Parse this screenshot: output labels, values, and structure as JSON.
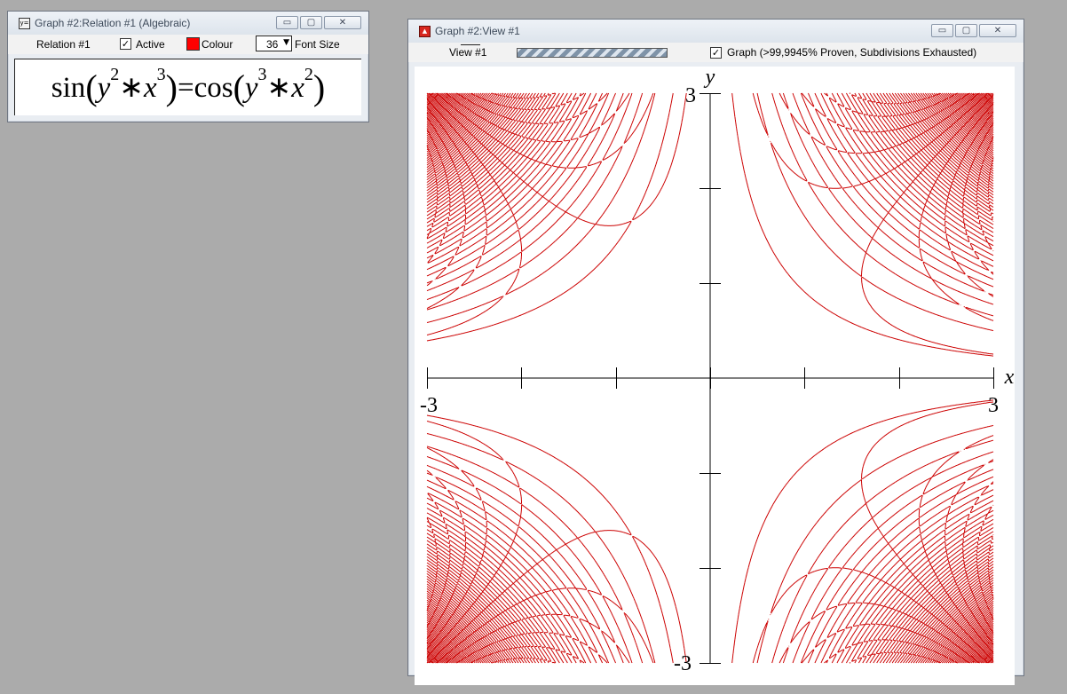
{
  "relation_window": {
    "title": "Graph #2:Relation #1 (Algebraic)",
    "icon": "y-equals-icon",
    "icon_text": "y=",
    "toolbar": {
      "relation_label": "Relation #1",
      "active_label": "Active",
      "active_checked": true,
      "colour_label": "Colour",
      "colour_value": "#ff0000",
      "font_size_value": "36",
      "font_size_label": "Font Size"
    },
    "equation": {
      "lhs_fn": "sin",
      "lhs_a": "y",
      "lhs_a_exp": "2",
      "op": "∗",
      "lhs_b": "x",
      "lhs_b_exp": "3",
      "equals": "=",
      "rhs_fn": "cos",
      "rhs_a": "y",
      "rhs_a_exp": "3",
      "rhs_b": "x",
      "rhs_b_exp": "2"
    }
  },
  "view_window": {
    "title": "Graph #2:View #1",
    "icon": "graph-view-icon",
    "toolbar": {
      "view_tab": "View #1",
      "graph_checked": true,
      "graph_status": "Graph (>99,9945% Proven, Subdivisions Exhausted)"
    },
    "accent_color": "#cc0000"
  },
  "chart_data": {
    "type": "implicit-relation",
    "relation": "sin(y^2*x^3)=cos(y^3*x^2)",
    "xlabel": "x",
    "ylabel": "y",
    "xlim": [
      -3,
      3
    ],
    "ylim": [
      -3,
      3
    ],
    "x_ticks": [
      -3,
      -2,
      -1,
      0,
      1,
      2,
      3
    ],
    "y_ticks": [
      -3,
      -2,
      -1,
      0,
      1,
      2,
      3
    ],
    "x_tick_labels": [
      "-3",
      "3"
    ],
    "y_tick_labels": [
      "3",
      "-3"
    ],
    "series_color": "#cc0000"
  }
}
